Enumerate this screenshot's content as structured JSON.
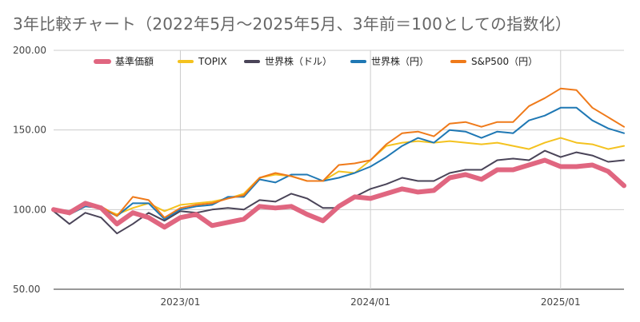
{
  "chart_data": {
    "type": "line",
    "title": "3年比較チャート（2022年5月〜2025年5月、3年前＝100としての指数化）",
    "xlabel": "",
    "ylabel": "",
    "ylim": [
      50,
      200
    ],
    "y_ticks": [
      "50.00",
      "100.00",
      "150.00",
      "200.00"
    ],
    "y_tick_values": [
      50,
      100,
      150,
      200
    ],
    "x_start": "2022-05",
    "x_end": "2025-05",
    "x_ticks": [
      {
        "label": "2023/01",
        "index": 8
      },
      {
        "label": "2024/01",
        "index": 20
      },
      {
        "label": "2025/01",
        "index": 32
      }
    ],
    "legend_position": "top",
    "grid": "vertical at year ticks, horizontal at value ticks",
    "series": [
      {
        "name": "基準価額",
        "color": "#e06680",
        "width": 6,
        "values": [
          100,
          98,
          104,
          101,
          91,
          98,
          95,
          89,
          95,
          97,
          90,
          92,
          94,
          102,
          101,
          102,
          97,
          93,
          102,
          108,
          107,
          110,
          113,
          111,
          112,
          120,
          122,
          119,
          125,
          125,
          128,
          131,
          127,
          127,
          128,
          124,
          115
        ]
      },
      {
        "name": "TOPIX",
        "color": "#f4c21f",
        "width": 2,
        "values": [
          100,
          97,
          102,
          101,
          97,
          101,
          104,
          99,
          103,
          104,
          105,
          107,
          110,
          120,
          122,
          121,
          118,
          118,
          124,
          123,
          131,
          140,
          142,
          143,
          142,
          143,
          142,
          141,
          142,
          140,
          138,
          142,
          145,
          142,
          141,
          138,
          140
        ]
      },
      {
        "name": "世界株（ドル）",
        "color": "#4a4458",
        "width": 2,
        "values": [
          99,
          91,
          98,
          95,
          85,
          91,
          98,
          93,
          99,
          98,
          100,
          101,
          100,
          106,
          105,
          110,
          107,
          101,
          101,
          108,
          113,
          116,
          120,
          118,
          118,
          123,
          125,
          125,
          131,
          132,
          131,
          137,
          133,
          136,
          134,
          130,
          131
        ]
      },
      {
        "name": "世界株（円）",
        "color": "#1f78b4",
        "width": 2,
        "values": [
          100,
          97,
          102,
          101,
          96,
          104,
          104,
          94,
          100,
          102,
          103,
          108,
          108,
          119,
          117,
          122,
          122,
          118,
          120,
          123,
          127,
          133,
          140,
          145,
          142,
          150,
          149,
          145,
          149,
          148,
          156,
          159,
          164,
          164,
          156,
          151,
          148
        ]
      },
      {
        "name": "S&P500（円）",
        "color": "#ef7a1a",
        "width": 2,
        "values": [
          100,
          97,
          104,
          102,
          96,
          108,
          106,
          95,
          101,
          103,
          104,
          107,
          109,
          120,
          123,
          121,
          118,
          118,
          128,
          129,
          131,
          141,
          148,
          149,
          146,
          154,
          155,
          152,
          155,
          155,
          165,
          170,
          176,
          175,
          164,
          158,
          152
        ]
      }
    ]
  }
}
